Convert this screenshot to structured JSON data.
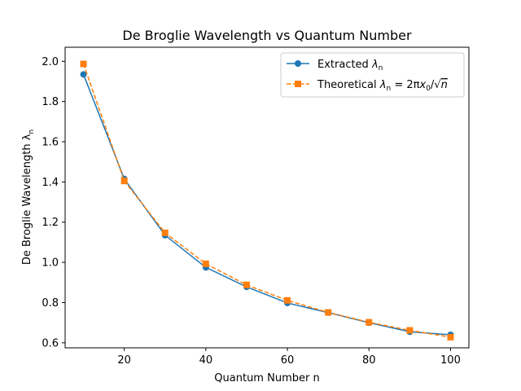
{
  "chart_data": {
    "type": "line",
    "title": "De Broglie Wavelength vs Quantum Number",
    "xlabel": "Quantum Number n",
    "ylabel": "De Broglie Wavelength λ",
    "ylabel_subscript": "n",
    "xlim": [
      5.5,
      104.5
    ],
    "ylim": [
      0.575,
      2.07
    ],
    "xticks": [
      20,
      40,
      60,
      80,
      100
    ],
    "yticks": [
      0.6,
      0.8,
      1.0,
      1.2,
      1.4,
      1.6,
      1.8,
      2.0
    ],
    "xtick_labels": [
      "20",
      "40",
      "60",
      "80",
      "100"
    ],
    "ytick_labels": [
      "0.6",
      "0.8",
      "1.0",
      "1.2",
      "1.4",
      "1.6",
      "1.8",
      "2.0"
    ],
    "grid": false,
    "legend_position": "top-right",
    "x": [
      10,
      20,
      30,
      40,
      50,
      60,
      70,
      80,
      90,
      100
    ],
    "series": [
      {
        "name": "Extracted λn",
        "legend_parts": [
          "Extracted ",
          "λ",
          "n"
        ],
        "color": "#1f77b4",
        "marker": "circle",
        "linestyle": "solid",
        "values": [
          1.935,
          1.415,
          1.135,
          0.975,
          0.878,
          0.798,
          0.75,
          0.7,
          0.655,
          0.64
        ]
      },
      {
        "name": "Theoretical λn = 2πx0/√n",
        "legend_parts": [
          "Theoretical ",
          "λ",
          "n",
          " = 2π",
          "x",
          "0",
          "/√",
          "n"
        ],
        "color": "#ff7f0e",
        "marker": "square",
        "linestyle": "dashed",
        "values": [
          1.987,
          1.405,
          1.147,
          0.993,
          0.888,
          0.811,
          0.751,
          0.702,
          0.662,
          0.628
        ]
      }
    ]
  }
}
